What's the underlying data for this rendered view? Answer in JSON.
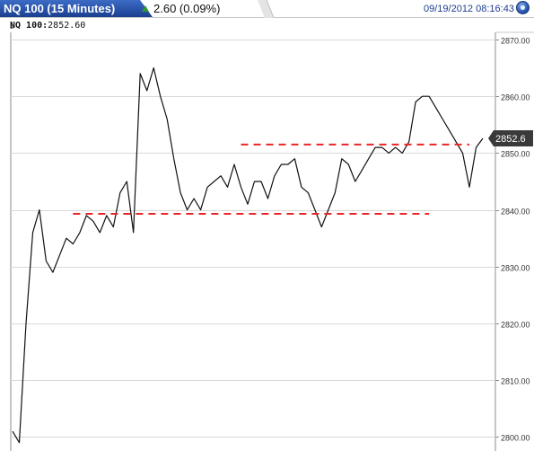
{
  "header": {
    "title": "NQ 100 (15 Minutes)",
    "change": "2.60 (0.09%)",
    "datetime": "09/19/2012 08:16:43",
    "title_bg": "#1f4ea8",
    "change_arrow_color": "#2e9a2e"
  },
  "subheader": {
    "symbol": "NQ 100:",
    "value": "2852.60"
  },
  "chart_data": {
    "type": "line",
    "title": "NQ 100 (15 Minutes)",
    "ylim": [
      2798,
      2872
    ],
    "ytick_labels": [
      "2800.00",
      "2810.00",
      "2820.00",
      "2830.00",
      "2840.00",
      "2850.00",
      "2860.00",
      "2870.00"
    ],
    "yticks": [
      2800,
      2810,
      2820,
      2830,
      2840,
      2850,
      2860,
      2870
    ],
    "last_price": 2852.6,
    "last_price_label": "2852.6",
    "series": [
      {
        "values": [
          2801,
          2799,
          2820,
          2836,
          2840,
          2831,
          2829,
          2832,
          2835,
          2834,
          2836,
          2839,
          2838,
          2836,
          2839,
          2837,
          2843,
          2845,
          2836,
          2864,
          2861,
          2865,
          2860,
          2856,
          2849,
          2843,
          2840,
          2842,
          2840,
          2844,
          2845,
          2846,
          2844,
          2848,
          2844,
          2841,
          2845,
          2845,
          2842,
          2846,
          2848,
          2848,
          2849,
          2844,
          2843,
          2840,
          2837,
          2840,
          2843,
          2849,
          2848,
          2845,
          2847,
          2849,
          2851,
          2851,
          2850,
          2851,
          2850,
          2852,
          2859,
          2860,
          2860,
          2858,
          2856,
          2854,
          2852,
          2850,
          2844,
          2851,
          2852.6
        ]
      }
    ],
    "annotations": [
      {
        "type": "hline",
        "y": 2851.5,
        "x_from_index": 34,
        "x_to_index": 68,
        "style": "dashed",
        "color": "#e8262a"
      },
      {
        "type": "hline",
        "y": 2839.3,
        "x_from_index": 9,
        "x_to_index": 62,
        "style": "dashed",
        "color": "#e8262a"
      }
    ],
    "grid": true,
    "colors": {
      "line": "#111111",
      "grid": "#d9d9d9",
      "price_tag": "#3a3a3a"
    }
  }
}
